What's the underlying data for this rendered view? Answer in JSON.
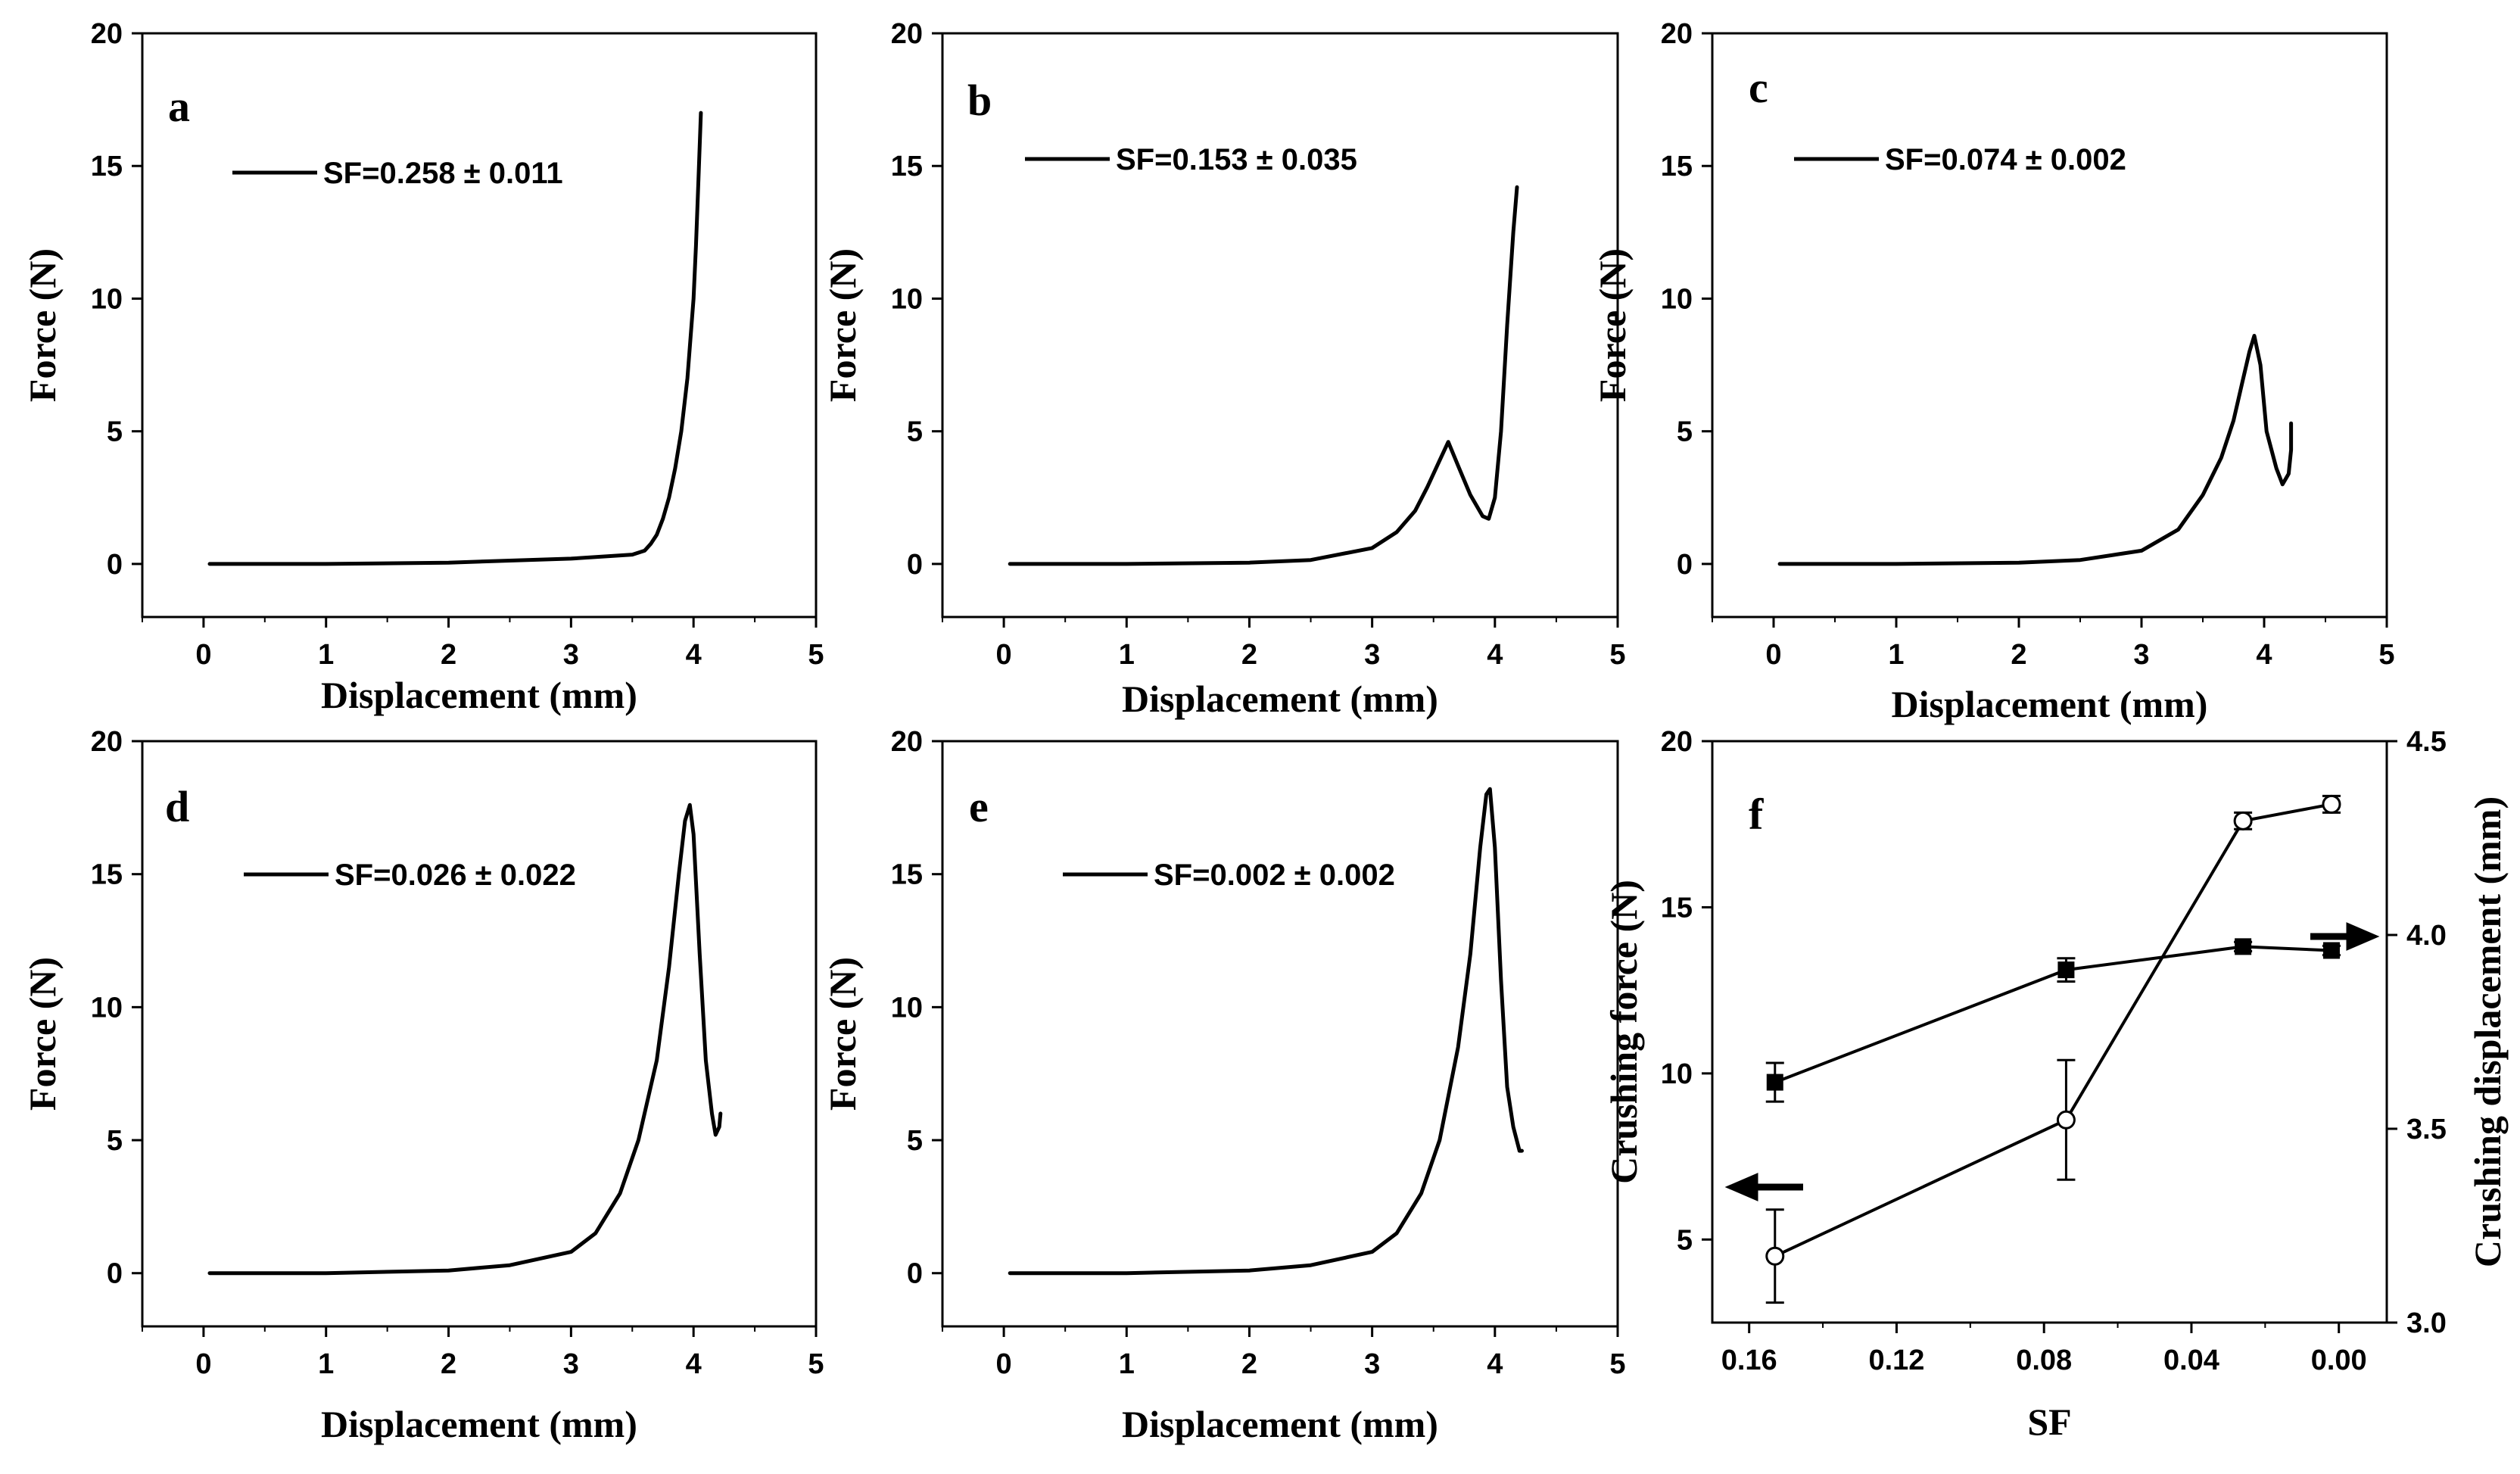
{
  "figure": {
    "background": "#ffffff",
    "line_color": "#000000"
  },
  "chart_data": [
    {
      "panel": "a",
      "type": "line",
      "xlabel": "Displacement (mm)",
      "ylabel": "Force (N)",
      "xlim": [
        -0.5,
        5
      ],
      "ylim": [
        -2,
        20
      ],
      "xticks": [
        "0",
        "1",
        "2",
        "3",
        "4",
        "5"
      ],
      "yticks": [
        "0",
        "5",
        "10",
        "15",
        "20"
      ],
      "legend": "SF=0.258 ± 0.011",
      "legend_position": "top-left",
      "series": [
        {
          "name": "SF=0.258 ± 0.011",
          "x": [
            0.05,
            1.0,
            2.0,
            3.0,
            3.5,
            3.6,
            3.65,
            3.7,
            3.75,
            3.8,
            3.85,
            3.9,
            3.95,
            4.0,
            4.02,
            4.04,
            4.06
          ],
          "y": [
            0.0,
            0.0,
            0.05,
            0.2,
            0.35,
            0.5,
            0.75,
            1.1,
            1.7,
            2.5,
            3.6,
            5.0,
            7.0,
            10.0,
            12.0,
            14.5,
            17.0
          ]
        }
      ]
    },
    {
      "panel": "b",
      "type": "line",
      "xlabel": "Displacement (mm)",
      "ylabel": "Force (N)",
      "xlim": [
        -0.5,
        5
      ],
      "ylim": [
        -2,
        20
      ],
      "xticks": [
        "0",
        "1",
        "2",
        "3",
        "4",
        "5"
      ],
      "yticks": [
        "0",
        "5",
        "10",
        "15",
        "20"
      ],
      "legend": "SF=0.153 ± 0.035",
      "legend_position": "top-left",
      "series": [
        {
          "name": "SF=0.153 ± 0.035",
          "x": [
            0.05,
            1.0,
            2.0,
            2.5,
            3.0,
            3.2,
            3.35,
            3.45,
            3.55,
            3.62,
            3.7,
            3.8,
            3.9,
            3.95,
            4.0,
            4.05,
            4.1,
            4.15,
            4.18
          ],
          "y": [
            0.0,
            0.0,
            0.05,
            0.15,
            0.6,
            1.2,
            2.0,
            2.9,
            3.9,
            4.6,
            3.7,
            2.6,
            1.8,
            1.7,
            2.5,
            5.0,
            9.0,
            12.5,
            14.2
          ]
        }
      ]
    },
    {
      "panel": "c",
      "type": "line",
      "xlabel": "Displacement (mm)",
      "ylabel": "Force (N)",
      "xlim": [
        -0.5,
        5
      ],
      "ylim": [
        -2,
        20
      ],
      "xticks": [
        "0",
        "1",
        "2",
        "3",
        "4",
        "5"
      ],
      "yticks": [
        "0",
        "5",
        "10",
        "15",
        "20"
      ],
      "legend": "SF=0.074 ± 0.002",
      "legend_position": "top-left",
      "series": [
        {
          "name": "SF=0.074 ± 0.002",
          "x": [
            0.05,
            1.0,
            2.0,
            2.5,
            3.0,
            3.3,
            3.5,
            3.65,
            3.75,
            3.82,
            3.88,
            3.92,
            3.97,
            4.02,
            4.1,
            4.15,
            4.2,
            4.22,
            4.22
          ],
          "y": [
            0.0,
            0.0,
            0.05,
            0.15,
            0.5,
            1.3,
            2.6,
            4.0,
            5.4,
            6.8,
            8.0,
            8.6,
            7.5,
            5.0,
            3.6,
            3.0,
            3.4,
            4.3,
            5.3
          ]
        }
      ]
    },
    {
      "panel": "d",
      "type": "line",
      "xlabel": "Displacement (mm)",
      "ylabel": "Force (N)",
      "xlim": [
        -0.5,
        5
      ],
      "ylim": [
        -2,
        20
      ],
      "xticks": [
        "0",
        "1",
        "2",
        "3",
        "4",
        "5"
      ],
      "yticks": [
        "0",
        "5",
        "10",
        "15",
        "20"
      ],
      "legend": "SF=0.026 ± 0.022",
      "legend_position": "top-left",
      "series": [
        {
          "name": "SF=0.026 ± 0.022",
          "x": [
            0.05,
            1.0,
            2.0,
            2.5,
            3.0,
            3.2,
            3.4,
            3.55,
            3.7,
            3.8,
            3.88,
            3.93,
            3.97,
            4.0,
            4.05,
            4.1,
            4.15,
            4.18,
            4.21,
            4.22
          ],
          "y": [
            0.0,
            0.0,
            0.1,
            0.3,
            0.8,
            1.5,
            3.0,
            5.0,
            8.0,
            11.5,
            15.0,
            17.0,
            17.6,
            16.5,
            12.0,
            8.0,
            6.0,
            5.2,
            5.5,
            6.0
          ]
        }
      ]
    },
    {
      "panel": "e",
      "type": "line",
      "xlabel": "Displacement (mm)",
      "ylabel": "Force (N)",
      "xlim": [
        -0.5,
        5
      ],
      "ylim": [
        -2,
        20
      ],
      "xticks": [
        "0",
        "1",
        "2",
        "3",
        "4",
        "5"
      ],
      "yticks": [
        "0",
        "5",
        "10",
        "15",
        "20"
      ],
      "legend": "SF=0.002 ± 0.002",
      "legend_position": "top-left",
      "series": [
        {
          "name": "SF=0.002 ± 0.002",
          "x": [
            0.05,
            1.0,
            2.0,
            2.5,
            3.0,
            3.2,
            3.4,
            3.55,
            3.7,
            3.8,
            3.88,
            3.93,
            3.96,
            4.0,
            4.05,
            4.1,
            4.15,
            4.2,
            4.22
          ],
          "y": [
            0.0,
            0.0,
            0.1,
            0.3,
            0.8,
            1.5,
            3.0,
            5.0,
            8.5,
            12.0,
            16.0,
            18.0,
            18.2,
            16.0,
            11.0,
            7.0,
            5.5,
            4.6,
            4.6
          ]
        }
      ]
    },
    {
      "panel": "f",
      "type": "line",
      "xlabel": "SF",
      "ylabel": "Crushing force (N)",
      "y2label": "Crushing displacement (mm)",
      "xlim": [
        0.17,
        -0.013
      ],
      "xreversed": true,
      "ylim": [
        2.5,
        20
      ],
      "y2lim": [
        3.0,
        4.5
      ],
      "xticks": [
        "0.16",
        "0.12",
        "0.08",
        "0.04",
        "0.00"
      ],
      "yticks": [
        "5",
        "10",
        "15",
        "20"
      ],
      "y2ticks": [
        "3.0",
        "3.5",
        "4.0",
        "4.5"
      ],
      "series": [
        {
          "name": "Crushing force",
          "axis": "left",
          "marker": "open-circle",
          "x": [
            0.153,
            0.074,
            0.026,
            0.002
          ],
          "y": [
            4.5,
            8.6,
            17.6,
            18.1
          ],
          "err": [
            1.4,
            1.8,
            0.25,
            0.25
          ]
        },
        {
          "name": "Crushing displacement",
          "axis": "right",
          "marker": "filled-square",
          "x": [
            0.153,
            0.074,
            0.026,
            0.002
          ],
          "y": [
            3.62,
            3.91,
            3.97,
            3.96
          ],
          "err": [
            0.05,
            0.03,
            0.012,
            0.012
          ]
        }
      ],
      "annotations": [
        "left arrow points to Crushing force axis",
        "right arrow points to Crushing displacement axis"
      ]
    }
  ]
}
